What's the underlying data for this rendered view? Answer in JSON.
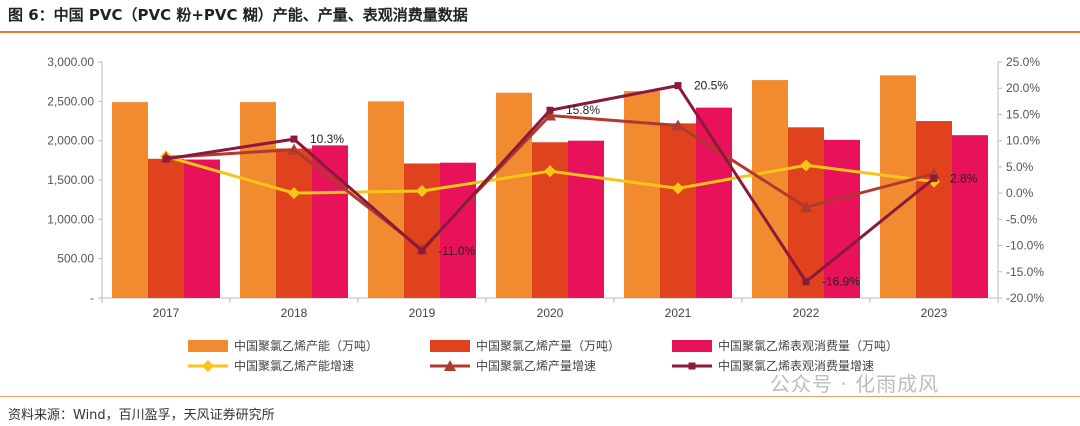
{
  "header": {
    "title": "图 6：中国 PVC（PVC 粉+PVC 糊）产能、产量、表观消费量数据"
  },
  "footer": {
    "source": "资料来源：Wind，百川盈孚，天风证券研究所"
  },
  "watermark": {
    "text": "公众号 · 化雨成风"
  },
  "chart_data": {
    "type": "bar",
    "categories": [
      "2017",
      "2018",
      "2019",
      "2020",
      "2021",
      "2022",
      "2023"
    ],
    "left_axis": {
      "ylim": [
        0,
        3000
      ],
      "ticks": [
        0,
        500,
        1000,
        1500,
        2000,
        2500,
        3000
      ],
      "tick_labels": [
        "-",
        "500.00",
        "1,000.00",
        "1,500.00",
        "2,000.00",
        "2,500.00",
        "3,000.00"
      ]
    },
    "right_axis": {
      "ylim": [
        -20,
        25
      ],
      "ticks": [
        -20,
        -15,
        -10,
        -5,
        0,
        5,
        10,
        15,
        20,
        25
      ],
      "tick_labels": [
        "-20.0%",
        "-15.0%",
        "-10.0%",
        "-5.0%",
        "0.0%",
        "5.0%",
        "10.0%",
        "15.0%",
        "20.0%",
        "25.0%"
      ]
    },
    "bar_series": [
      {
        "name": "中国聚氯乙烯产能（万吨）",
        "color": "#F28A30",
        "values": [
          2490,
          2490,
          2500,
          2610,
          2630,
          2770,
          2830
        ]
      },
      {
        "name": "中国聚氯乙烯产量（万吨）",
        "color": "#E0421D",
        "values": [
          1770,
          1900,
          1710,
          1980,
          2220,
          2170,
          2250
        ]
      },
      {
        "name": "中国聚氯乙烯表观消费量（万吨）",
        "color": "#E8125A",
        "values": [
          1760,
          1940,
          1720,
          2000,
          2420,
          2010,
          2070
        ]
      }
    ],
    "line_series": [
      {
        "name": "中国聚氯乙烯产能增速",
        "color": "#F5C518",
        "marker": "diamond",
        "values": [
          7.0,
          0.0,
          0.4,
          4.2,
          0.9,
          5.3,
          2.2
        ]
      },
      {
        "name": "中国聚氯乙烯产量增速",
        "color": "#B03A2E",
        "marker": "triangle",
        "values": [
          6.8,
          8.3,
          -10.7,
          14.8,
          12.9,
          -2.7,
          3.7
        ]
      },
      {
        "name": "中国聚氯乙烯表观消费量增速",
        "color": "#8B1A3A",
        "marker": "square",
        "values": [
          6.5,
          10.3,
          -11.0,
          15.8,
          20.5,
          -16.9,
          2.8
        ],
        "labels": [
          "",
          "10.3%",
          "-11.0%",
          "15.8%",
          "20.5%",
          "-16.9%",
          "2.8%"
        ]
      }
    ],
    "grid": false,
    "legend_position": "bottom"
  }
}
